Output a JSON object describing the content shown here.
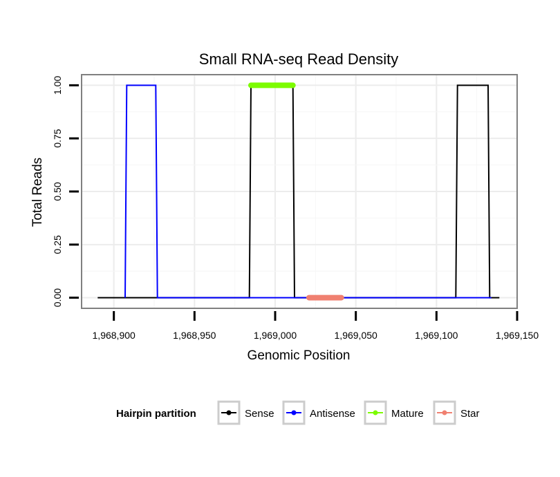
{
  "chart_data": {
    "type": "line",
    "title": "Small RNA-seq Read Density",
    "xlabel": "Genomic Position",
    "ylabel": "Total Reads",
    "xlim": [
      1968880,
      1969150
    ],
    "ylim": [
      -0.05,
      1.05
    ],
    "x_ticks": [
      1968900,
      1968950,
      1969000,
      1969050,
      1969100,
      1969150
    ],
    "x_tick_labels": [
      "1,968,900",
      "1,968,950",
      "1,969,000",
      "1,969,050",
      "1,969,100",
      "1,969,150"
    ],
    "y_ticks": [
      0,
      0.25,
      0.5,
      0.75,
      1.0
    ],
    "y_tick_labels": [
      "0.00",
      "0.25",
      "0.50",
      "0.75",
      "1.00"
    ],
    "grid": true,
    "legend_position": "bottom",
    "legend_title": "Hairpin partition",
    "series": [
      {
        "name": "Sense",
        "color": "#000000",
        "points": [
          [
            1968890,
            0
          ],
          [
            1968984,
            0
          ],
          [
            1968985,
            1
          ],
          [
            1969011,
            1
          ],
          [
            1969012,
            0
          ],
          [
            1969112,
            0
          ],
          [
            1969113,
            1
          ],
          [
            1969132,
            1
          ],
          [
            1969133,
            0
          ],
          [
            1969139,
            0
          ]
        ]
      },
      {
        "name": "Antisense",
        "color": "#0000ff",
        "points": [
          [
            1968907,
            0
          ],
          [
            1968908,
            1
          ],
          [
            1968926,
            1
          ],
          [
            1968927,
            0
          ],
          [
            1968984,
            0
          ],
          [
            1968985,
            0
          ],
          [
            1969012,
            0
          ],
          [
            1969112,
            0
          ],
          [
            1969113,
            0
          ],
          [
            1969134,
            0
          ]
        ]
      },
      {
        "name": "Mature",
        "color": "#7cfc00",
        "points": [
          [
            1968985,
            1
          ],
          [
            1969011,
            1
          ]
        ]
      },
      {
        "name": "Star",
        "color": "#f08070",
        "points": [
          [
            1969021,
            0
          ],
          [
            1969041,
            0
          ]
        ]
      }
    ]
  }
}
